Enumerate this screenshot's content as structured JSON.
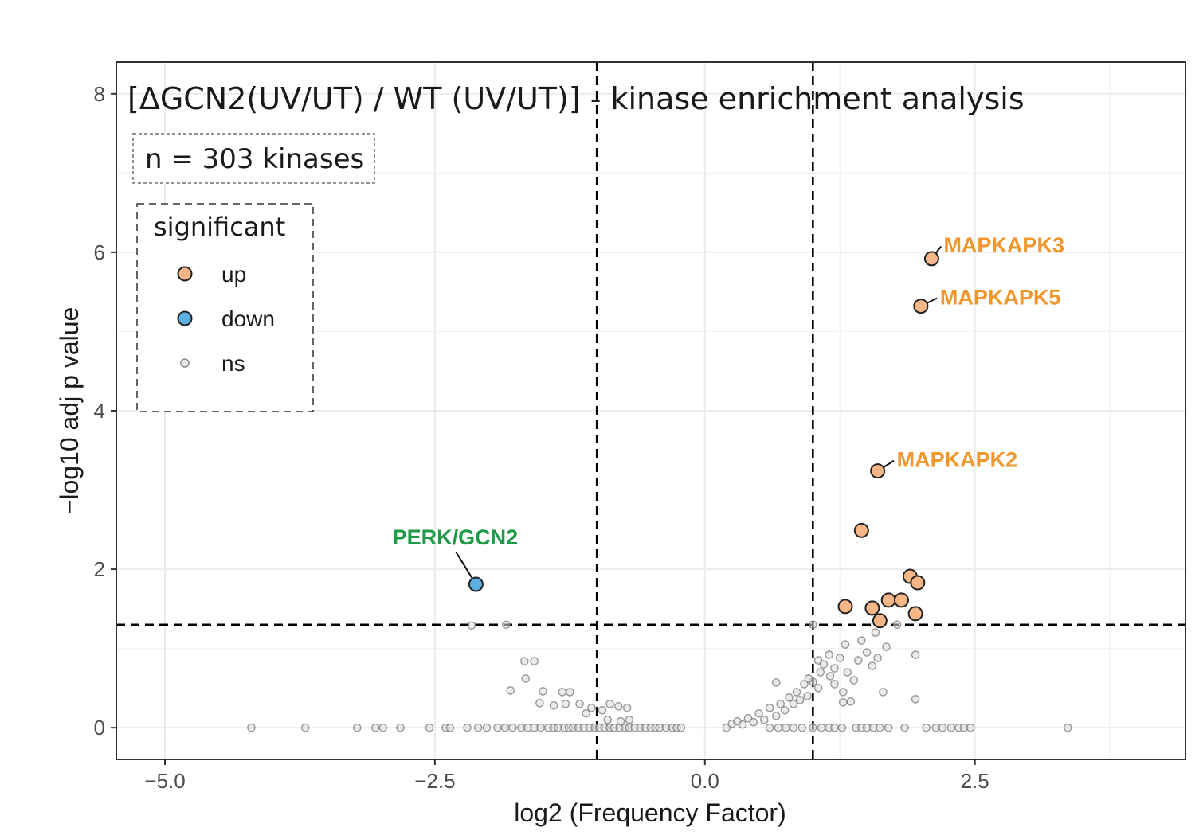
{
  "chart_data": {
    "type": "scatter",
    "title": "[ΔGCN2(UV/UT) / WT (UV/UT)] - kinase enrichment analysis",
    "count_label": "n = 303 kinases",
    "xlabel": "log2 (Frequency Factor)",
    "ylabel": "−log10 adj p value",
    "xlim": [
      -5.45,
      4.45
    ],
    "ylim": [
      -0.4,
      8.4
    ],
    "x_ticks": [
      -5.0,
      -2.5,
      0.0,
      2.5
    ],
    "x_tick_labels": [
      "−5.0",
      "−2.5",
      "0.0",
      "2.5"
    ],
    "y_ticks": [
      0,
      2,
      4,
      6,
      8
    ],
    "y_tick_labels": [
      "0",
      "2",
      "4",
      "6",
      "8"
    ],
    "grid": true,
    "thresholds": {
      "x": [
        -1.0,
        1.0
      ],
      "y": 1.3
    },
    "colors": {
      "up": "#f6b688",
      "down": "#5aafe0",
      "ns": "#d9d9d9",
      "up_label": "#f0962a",
      "down_label": "#1f9a48",
      "threshold": "#000000",
      "grid": "#ebebeb"
    },
    "legend": {
      "title": "significant",
      "position": "top-left",
      "entries": [
        {
          "key": "up",
          "label": "up"
        },
        {
          "key": "down",
          "label": "down"
        },
        {
          "key": "ns",
          "label": "ns"
        }
      ]
    },
    "series": [
      {
        "name": "up",
        "points": [
          [
            2.1,
            5.92
          ],
          [
            2.0,
            5.32
          ],
          [
            1.6,
            3.24
          ],
          [
            1.45,
            2.49
          ],
          [
            1.9,
            1.91
          ],
          [
            1.97,
            1.83
          ],
          [
            1.7,
            1.61
          ],
          [
            1.82,
            1.61
          ],
          [
            1.3,
            1.53
          ],
          [
            1.55,
            1.51
          ],
          [
            1.95,
            1.44
          ],
          [
            1.62,
            1.35
          ]
        ]
      },
      {
        "name": "down",
        "points": [
          [
            -2.12,
            1.81
          ]
        ]
      },
      {
        "name": "ns",
        "points": [
          [
            -4.2,
            0
          ],
          [
            -3.7,
            0
          ],
          [
            -3.22,
            0
          ],
          [
            -3.05,
            0
          ],
          [
            -2.98,
            0
          ],
          [
            -2.82,
            0
          ],
          [
            -2.55,
            0
          ],
          [
            -2.4,
            0
          ],
          [
            -2.36,
            0
          ],
          [
            -2.2,
            0
          ],
          [
            -2.1,
            0
          ],
          [
            -2.02,
            0
          ],
          [
            -1.92,
            0
          ],
          [
            -1.85,
            0
          ],
          [
            -1.78,
            0
          ],
          [
            -1.7,
            0
          ],
          [
            -1.64,
            0
          ],
          [
            -1.58,
            0
          ],
          [
            -1.52,
            0
          ],
          [
            -1.45,
            0
          ],
          [
            -1.4,
            0
          ],
          [
            -1.36,
            0
          ],
          [
            -1.3,
            0
          ],
          [
            -1.26,
            0
          ],
          [
            -1.22,
            0
          ],
          [
            -1.17,
            0
          ],
          [
            -1.12,
            0
          ],
          [
            -1.07,
            0
          ],
          [
            -1.02,
            0
          ],
          [
            -0.98,
            0
          ],
          [
            -0.93,
            0
          ],
          [
            -0.88,
            0
          ],
          [
            -0.84,
            0
          ],
          [
            -0.79,
            0
          ],
          [
            -0.74,
            0
          ],
          [
            -0.7,
            0
          ],
          [
            -0.65,
            0
          ],
          [
            -0.6,
            0
          ],
          [
            -0.55,
            0
          ],
          [
            -0.5,
            0
          ],
          [
            -0.46,
            0
          ],
          [
            -0.42,
            0
          ],
          [
            -0.36,
            0
          ],
          [
            -0.3,
            0
          ],
          [
            -0.26,
            0
          ],
          [
            -0.22,
            0
          ],
          [
            0.2,
            0
          ],
          [
            0.25,
            0.05
          ],
          [
            0.3,
            0.08
          ],
          [
            0.35,
            0.04
          ],
          [
            0.4,
            0.12
          ],
          [
            0.45,
            0.07
          ],
          [
            0.5,
            0.18
          ],
          [
            0.55,
            0.1
          ],
          [
            0.6,
            0.25
          ],
          [
            0.66,
            0.15
          ],
          [
            0.7,
            0.3
          ],
          [
            0.74,
            0.22
          ],
          [
            0.78,
            0.38
          ],
          [
            0.82,
            0.3
          ],
          [
            0.85,
            0.45
          ],
          [
            0.88,
            0.35
          ],
          [
            0.92,
            0.55
          ],
          [
            0.95,
            0.4
          ],
          [
            0.6,
            0
          ],
          [
            0.68,
            0
          ],
          [
            0.75,
            0
          ],
          [
            0.82,
            0
          ],
          [
            0.9,
            0
          ],
          [
            1.0,
            0
          ],
          [
            1.08,
            0
          ],
          [
            1.15,
            0
          ],
          [
            1.2,
            0
          ],
          [
            1.27,
            0
          ],
          [
            1.4,
            0
          ],
          [
            1.45,
            0
          ],
          [
            1.5,
            0
          ],
          [
            1.56,
            0
          ],
          [
            1.62,
            0
          ],
          [
            1.7,
            0
          ],
          [
            1.85,
            0
          ],
          [
            2.05,
            0
          ],
          [
            2.14,
            0
          ],
          [
            2.2,
            0
          ],
          [
            2.28,
            0
          ],
          [
            2.35,
            0
          ],
          [
            2.4,
            0
          ],
          [
            2.46,
            0
          ],
          [
            3.36,
            0
          ],
          [
            -2.16,
            1.29
          ],
          [
            -1.84,
            1.3
          ],
          [
            -1.67,
            0.84
          ],
          [
            -1.58,
            0.84
          ],
          [
            -1.66,
            0.62
          ],
          [
            -1.8,
            0.47
          ],
          [
            -1.5,
            0.46
          ],
          [
            -1.32,
            0.45
          ],
          [
            -1.25,
            0.45
          ],
          [
            -1.29,
            0.3
          ],
          [
            -1.4,
            0.28
          ],
          [
            -1.53,
            0.31
          ],
          [
            -1.16,
            0.3
          ],
          [
            -1.05,
            0.25
          ],
          [
            -0.95,
            0.22
          ],
          [
            -0.8,
            0.27
          ],
          [
            -0.72,
            0.25
          ],
          [
            -0.88,
            0.3
          ],
          [
            -1.1,
            0.18
          ],
          [
            -0.9,
            0.1
          ],
          [
            -0.78,
            0.08
          ],
          [
            -0.7,
            0.1
          ],
          [
            1.05,
            0.85
          ],
          [
            1.1,
            0.8
          ],
          [
            1.15,
            0.92
          ],
          [
            1.2,
            0.75
          ],
          [
            1.25,
            0.88
          ],
          [
            1.32,
            0.7
          ],
          [
            1.38,
            0.6
          ],
          [
            1.42,
            0.85
          ],
          [
            1.5,
            0.95
          ],
          [
            1.55,
            0.78
          ],
          [
            1.6,
            0.88
          ],
          [
            1.68,
            1.02
          ],
          [
            1.78,
            1.3
          ],
          [
            1.58,
            1.2
          ],
          [
            1.45,
            1.1
          ],
          [
            1.3,
            1.05
          ],
          [
            1.2,
            0.55
          ],
          [
            1.28,
            0.45
          ],
          [
            1.16,
            0.65
          ],
          [
            1.07,
            0.7
          ],
          [
            1.95,
            0.92
          ],
          [
            1.95,
            0.36
          ],
          [
            1.65,
            0.45
          ],
          [
            1.35,
            0.33
          ],
          [
            1.28,
            0.32
          ],
          [
            1.05,
            0.5
          ],
          [
            1.0,
            0.58
          ],
          [
            0.96,
            0.62
          ],
          [
            0.66,
            0.57
          ],
          [
            1.0,
            1.3
          ]
        ]
      }
    ],
    "annotations": [
      {
        "text": "MAPKAPK3",
        "series": "up",
        "x": 2.1,
        "y": 5.92,
        "dx": 13,
        "dy": -17
      },
      {
        "text": "MAPKAPK5",
        "series": "up",
        "x": 2.0,
        "y": 5.32,
        "dx": 22,
        "dy": -11
      },
      {
        "text": "MAPKAPK2",
        "series": "up",
        "x": 1.6,
        "y": 3.24,
        "dx": 22,
        "dy": -14
      },
      {
        "text": "PERK/GCN2",
        "series": "down",
        "x": -2.12,
        "y": 1.81,
        "dx": -26,
        "dy": -42
      }
    ]
  }
}
